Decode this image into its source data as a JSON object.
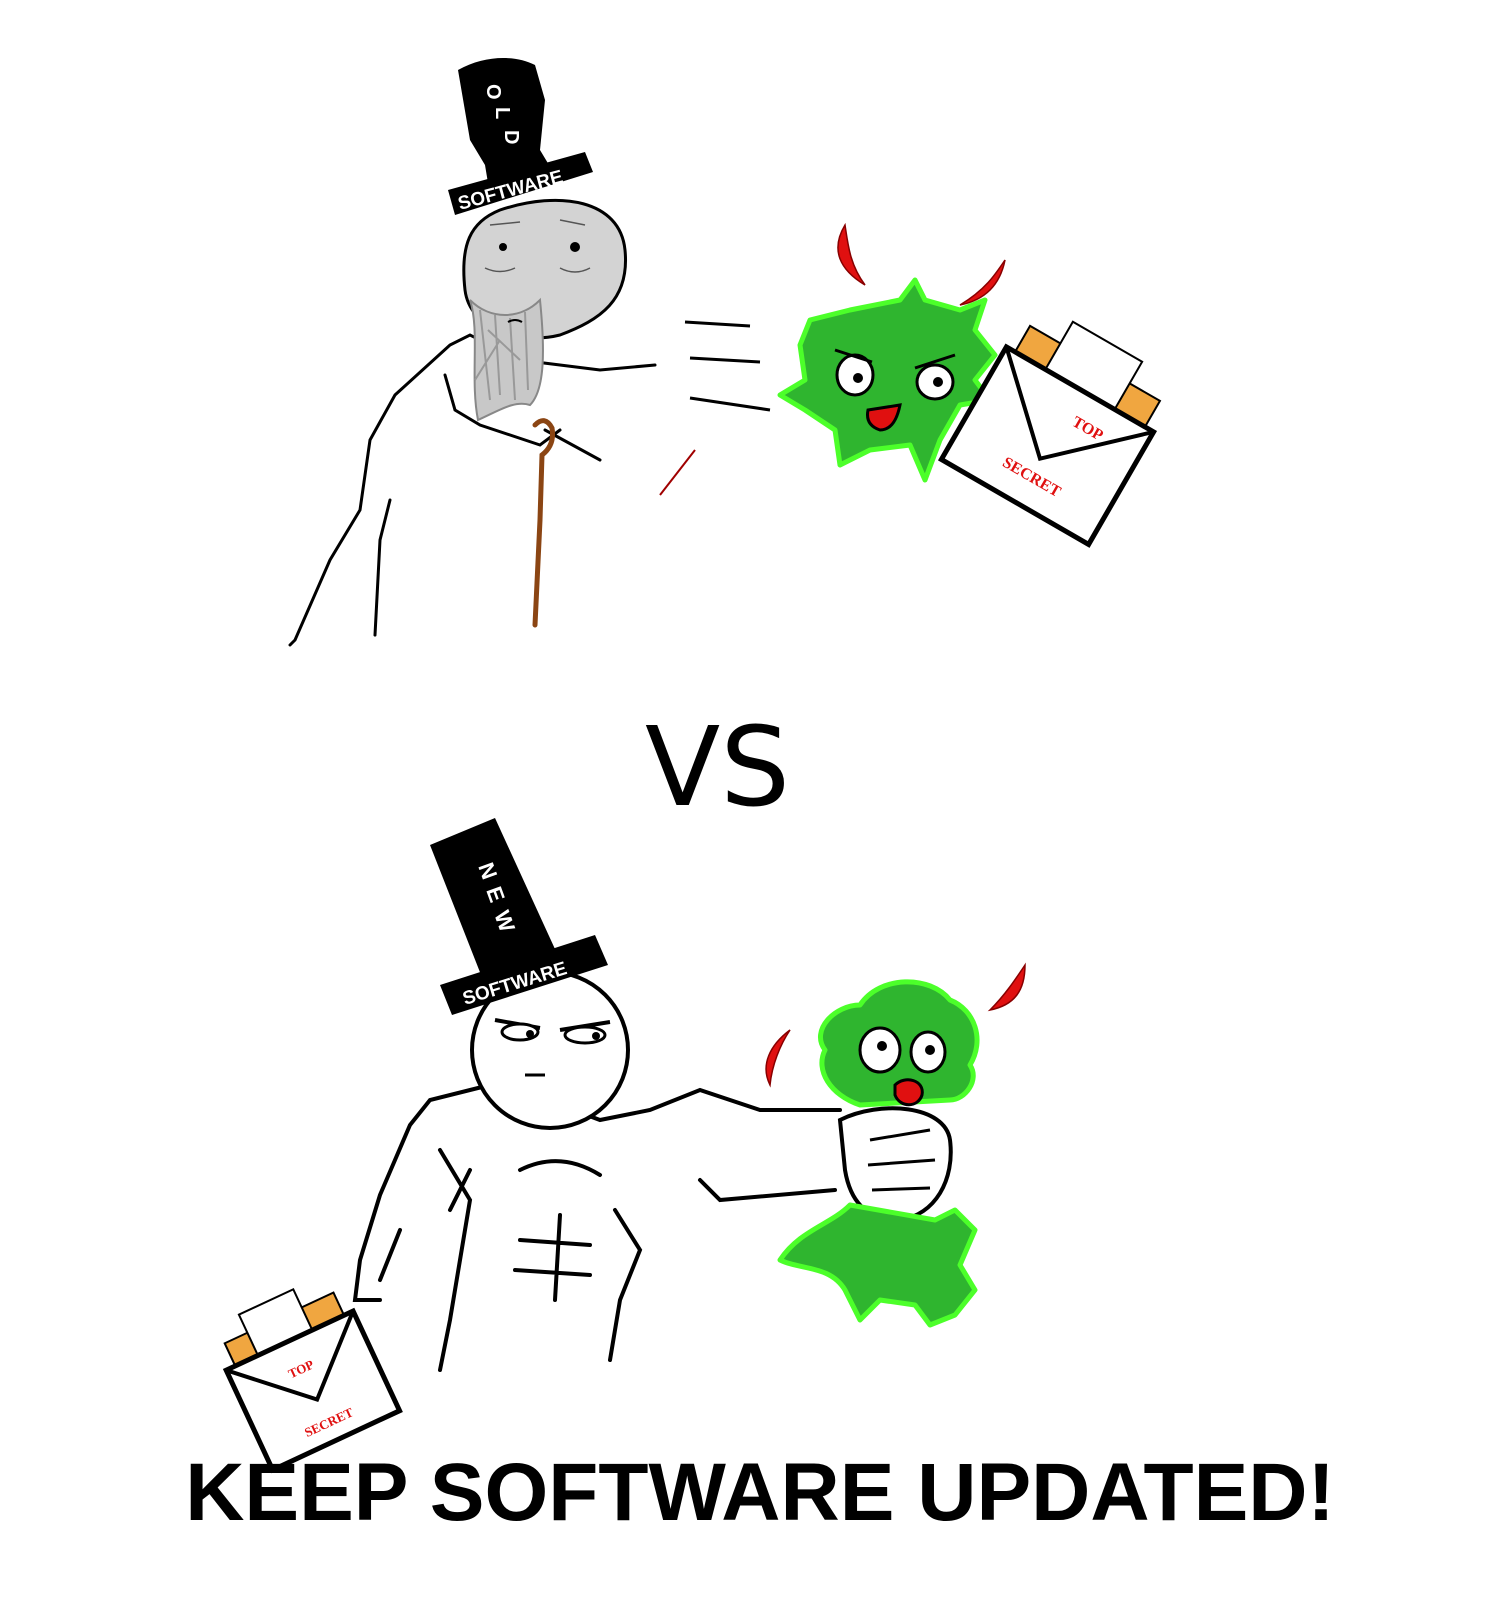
{
  "panel_top": {
    "hat": {
      "vertical_letters": [
        "O",
        "L",
        "D"
      ],
      "band_label": "SOFTWARE"
    },
    "envelope": {
      "line1": "TOP",
      "line2": "SECRET"
    }
  },
  "divider": {
    "label": "VS"
  },
  "panel_bottom": {
    "hat": {
      "vertical_letters": [
        "N",
        "E",
        "W"
      ],
      "band_label": "SOFTWARE"
    },
    "envelope": {
      "line1": "TOP",
      "line2": "SECRET"
    }
  },
  "slogan": "KEEP SOFTWARE UPDATED!",
  "colors": {
    "virus_fill": "#2fb52f",
    "virus_glow": "#4cff2a",
    "horn": "#e01010",
    "cane": "#8b4513",
    "hat": "#000000",
    "folder": "#f0a640"
  }
}
